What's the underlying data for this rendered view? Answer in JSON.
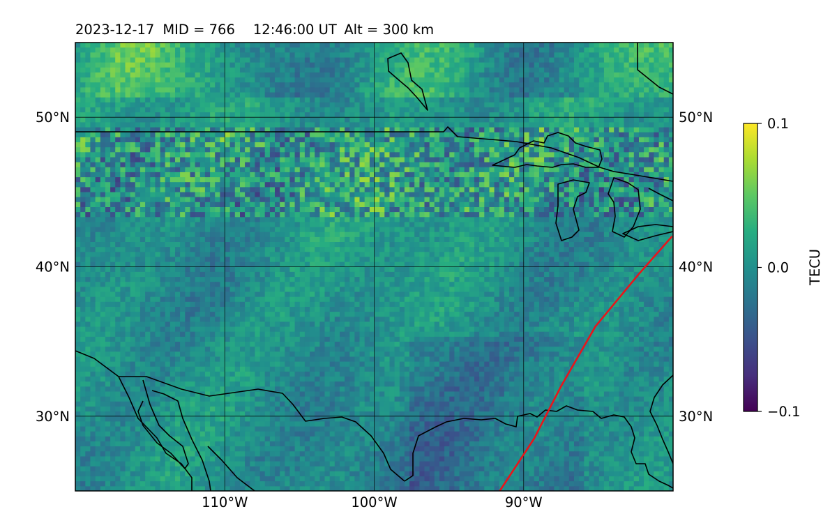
{
  "title": {
    "date": "2023-12-17",
    "mid": "MID = 766",
    "time": "12:46:00  UT",
    "alt": "Alt = 300 km"
  },
  "map": {
    "lon_range": [
      -120,
      -80
    ],
    "lat_range": [
      25,
      55
    ],
    "lon_ticks": [
      {
        "lon": -110,
        "label": "110°W"
      },
      {
        "lon": -100,
        "label": "100°W"
      },
      {
        "lon": -90,
        "label": "90°W"
      }
    ],
    "lat_ticks": [
      {
        "lat": 50,
        "label": "50°N"
      },
      {
        "lat": 40,
        "label": "40°N"
      },
      {
        "lat": 30,
        "label": "30°N"
      }
    ],
    "track_color": "#e8151b",
    "coast_color": "#000000",
    "track_points": [
      [
        -91.6,
        25
      ],
      [
        -89.3,
        28.5
      ],
      [
        -87.5,
        32
      ],
      [
        -85.2,
        36
      ],
      [
        -82.3,
        39.5
      ],
      [
        -80.1,
        42
      ]
    ]
  },
  "colorbar": {
    "label": "TECU",
    "colormap": "viridis",
    "min": -0.1,
    "max": 0.1,
    "ticks": [
      {
        "value": 0.1,
        "label": "0.1"
      },
      {
        "value": 0.0,
        "label": "0.0"
      },
      {
        "value": -0.1,
        "label": "−0.1"
      }
    ]
  },
  "chart_data": {
    "type": "heatmap",
    "variable": "TECU",
    "lon_range": [
      -120,
      -80
    ],
    "lat_range": [
      25,
      55
    ],
    "value_range": [
      -0.1,
      0.1
    ],
    "grid": true
  }
}
